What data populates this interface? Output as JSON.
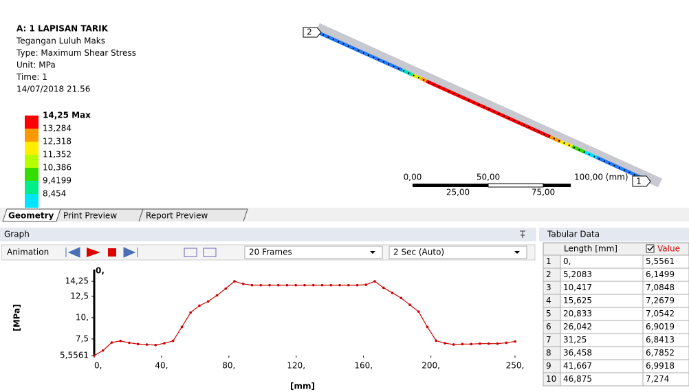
{
  "header": {
    "title": "A: 1 LAPISAN TARIK",
    "lines": [
      "Tegangan Luluh Maks",
      "Type: Maximum Shear Stress",
      "Unit: MPa",
      "Time: 1",
      "14/07/2018 21.56"
    ]
  },
  "legend": {
    "max_label": "14,25 Max",
    "levels": [
      "13,284",
      "12,318",
      "11,352",
      "10,386",
      "9,4199",
      "8,454"
    ],
    "colors": [
      "#ff0000",
      "#ff9900",
      "#ffee00",
      "#b5ff00",
      "#33dd00",
      "#00ee88",
      "#00e5ff"
    ]
  },
  "probe": {
    "start_label": "2",
    "end_label": "1"
  },
  "scale_bar": {
    "top_labels": [
      "0,00",
      "50,00",
      "100,00 (mm)"
    ],
    "bottom_labels": [
      "25,00",
      "75,00"
    ]
  },
  "tabs": [
    "Geometry",
    "Print Preview",
    "Report Preview"
  ],
  "graph_panel": {
    "title": "Graph",
    "animation_label": "Animation",
    "frames": "20 Frames",
    "duration": "2 Sec (Auto)"
  },
  "chart_data": {
    "type": "line",
    "color": "#cc0000",
    "cursor_label": "0,",
    "y_label": "[MPa]",
    "x_label": "[mm]",
    "x": [
      0,
      5.2083,
      10.4167,
      15.625,
      20.8333,
      26.0417,
      31.25,
      36.4583,
      41.6667,
      46.875,
      52.0833,
      57.2917,
      62.5,
      67.7083,
      72.9167,
      78.125,
      83.3333,
      88.5417,
      93.75,
      98.9583,
      104.1667,
      109.375,
      114.5833,
      119.7917,
      125,
      130.2083,
      135.4167,
      140.625,
      145.8333,
      151.0417,
      156.25,
      161.4583,
      166.6667,
      171.875,
      177.0833,
      182.2917,
      187.5,
      192.7083,
      197.9167,
      203.125,
      208.3333,
      213.5417,
      218.75,
      223.9583,
      229.1667,
      234.375,
      239.5833,
      244.7917,
      250
    ],
    "values": [
      5.5561,
      6.1499,
      7.0848,
      7.2679,
      7.0542,
      6.9019,
      6.8413,
      6.7852,
      6.9918,
      7.274,
      8.9,
      10.6,
      11.4,
      11.9,
      12.6,
      13.4,
      14.25,
      13.95,
      13.8,
      13.8,
      13.8,
      13.8,
      13.8,
      13.8,
      13.8,
      13.8,
      13.8,
      13.8,
      13.8,
      13.8,
      13.8,
      13.85,
      14.25,
      13.5,
      12.9,
      12.3,
      11.5,
      10.7,
      8.9,
      7.3,
      7.0,
      6.85,
      6.9,
      6.9,
      6.95,
      6.95,
      6.95,
      7.05,
      7.2
    ],
    "xlim": [
      0,
      250
    ],
    "ylim": [
      5.5561,
      14.9
    ],
    "xticks": [
      {
        "value": 0,
        "label": "0,"
      },
      {
        "value": 40,
        "label": "40,"
      },
      {
        "value": 80,
        "label": "80,"
      },
      {
        "value": 120,
        "label": "120,"
      },
      {
        "value": 160,
        "label": "160,"
      },
      {
        "value": 200,
        "label": "200,"
      },
      {
        "value": 250,
        "label": "250,"
      }
    ],
    "yticks": [
      {
        "value": 5.5561,
        "label": "5,5561"
      },
      {
        "value": 7.5,
        "label": "7,5"
      },
      {
        "value": 10,
        "label": "10,"
      },
      {
        "value": 12.5,
        "label": "12,5"
      },
      {
        "value": 14.25,
        "label": "14,25"
      }
    ]
  },
  "table": {
    "title": "Tabular Data",
    "columns": [
      "Length [mm]",
      "Value"
    ],
    "rows": [
      [
        "1",
        "0,",
        "5,5561"
      ],
      [
        "2",
        "5,2083",
        "6,1499"
      ],
      [
        "3",
        "10,417",
        "7,0848"
      ],
      [
        "4",
        "15,625",
        "7,2679"
      ],
      [
        "5",
        "20,833",
        "7,0542"
      ],
      [
        "6",
        "26,042",
        "6,9019"
      ],
      [
        "7",
        "31,25",
        "6,8413"
      ],
      [
        "8",
        "36,458",
        "6,7852"
      ],
      [
        "9",
        "41,667",
        "6,9918"
      ],
      [
        "10",
        "46,875",
        "7,274"
      ]
    ]
  }
}
